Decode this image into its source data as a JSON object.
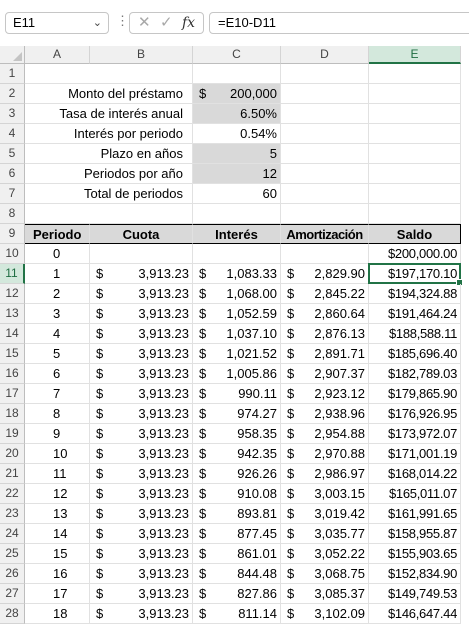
{
  "formula_bar": {
    "name_box": "E11",
    "dots": "⋮",
    "cancel_glyph": "✕",
    "enter_glyph": "✓",
    "fx_glyph": "fx",
    "formula": "=E10-D11"
  },
  "columns": [
    "A",
    "B",
    "C",
    "D",
    "E"
  ],
  "selected_cell": "E11",
  "summary": [
    {
      "row": "1",
      "label": "",
      "value": "",
      "currency": ""
    },
    {
      "row": "2",
      "label": "Monto del préstamo",
      "currency": "$",
      "value": "200,000"
    },
    {
      "row": "3",
      "label": "Tasa de interés anual",
      "currency": "",
      "value": "6.50%"
    },
    {
      "row": "4",
      "label": "Interés por periodo",
      "currency": "",
      "value": "0.54%"
    },
    {
      "row": "5",
      "label": "Plazo en años",
      "currency": "",
      "value": "5"
    },
    {
      "row": "6",
      "label": "Periodos por año",
      "currency": "",
      "value": "12"
    },
    {
      "row": "7",
      "label": "Total de periodos",
      "currency": "",
      "value": "60"
    },
    {
      "row": "8",
      "label": "",
      "currency": "",
      "value": ""
    }
  ],
  "table_header": {
    "row": "9",
    "periodo": "Periodo",
    "cuota": "Cuota",
    "interes": "Interés",
    "amortizacion": "Amortización",
    "saldo": "Saldo"
  },
  "table_rows": [
    {
      "row": "10",
      "periodo": "0",
      "cuota": "",
      "interes": "",
      "amortizacion": "",
      "saldo": "$200,000.00"
    },
    {
      "row": "11",
      "periodo": "1",
      "cuota": "3,913.23",
      "interes": "1,083.33",
      "amortizacion": "2,829.90",
      "saldo": "$197,170.10"
    },
    {
      "row": "12",
      "periodo": "2",
      "cuota": "3,913.23",
      "interes": "1,068.00",
      "amortizacion": "2,845.22",
      "saldo": "$194,324.88"
    },
    {
      "row": "13",
      "periodo": "3",
      "cuota": "3,913.23",
      "interes": "1,052.59",
      "amortizacion": "2,860.64",
      "saldo": "$191,464.24"
    },
    {
      "row": "14",
      "periodo": "4",
      "cuota": "3,913.23",
      "interes": "1,037.10",
      "amortizacion": "2,876.13",
      "saldo": "$188,588.11"
    },
    {
      "row": "15",
      "periodo": "5",
      "cuota": "3,913.23",
      "interes": "1,021.52",
      "amortizacion": "2,891.71",
      "saldo": "$185,696.40"
    },
    {
      "row": "16",
      "periodo": "6",
      "cuota": "3,913.23",
      "interes": "1,005.86",
      "amortizacion": "2,907.37",
      "saldo": "$182,789.03"
    },
    {
      "row": "17",
      "periodo": "7",
      "cuota": "3,913.23",
      "interes": "990.11",
      "amortizacion": "2,923.12",
      "saldo": "$179,865.90"
    },
    {
      "row": "18",
      "periodo": "8",
      "cuota": "3,913.23",
      "interes": "974.27",
      "amortizacion": "2,938.96",
      "saldo": "$176,926.95"
    },
    {
      "row": "19",
      "periodo": "9",
      "cuota": "3,913.23",
      "interes": "958.35",
      "amortizacion": "2,954.88",
      "saldo": "$173,972.07"
    },
    {
      "row": "20",
      "periodo": "10",
      "cuota": "3,913.23",
      "interes": "942.35",
      "amortizacion": "2,970.88",
      "saldo": "$171,001.19"
    },
    {
      "row": "21",
      "periodo": "11",
      "cuota": "3,913.23",
      "interes": "926.26",
      "amortizacion": "2,986.97",
      "saldo": "$168,014.22"
    },
    {
      "row": "22",
      "periodo": "12",
      "cuota": "3,913.23",
      "interes": "910.08",
      "amortizacion": "3,003.15",
      "saldo": "$165,011.07"
    },
    {
      "row": "23",
      "periodo": "13",
      "cuota": "3,913.23",
      "interes": "893.81",
      "amortizacion": "3,019.42",
      "saldo": "$161,991.65"
    },
    {
      "row": "24",
      "periodo": "14",
      "cuota": "3,913.23",
      "interes": "877.45",
      "amortizacion": "3,035.77",
      "saldo": "$158,955.87"
    },
    {
      "row": "25",
      "periodo": "15",
      "cuota": "3,913.23",
      "interes": "861.01",
      "amortizacion": "3,052.22",
      "saldo": "$155,903.65"
    },
    {
      "row": "26",
      "periodo": "16",
      "cuota": "3,913.23",
      "interes": "844.48",
      "amortizacion": "3,068.75",
      "saldo": "$152,834.90"
    },
    {
      "row": "27",
      "periodo": "17",
      "cuota": "3,913.23",
      "interes": "827.86",
      "amortizacion": "3,085.37",
      "saldo": "$149,749.53"
    },
    {
      "row": "28",
      "periodo": "18",
      "cuota": "3,913.23",
      "interes": "811.14",
      "amortizacion": "3,102.09",
      "saldo": "$146,647.44"
    }
  ],
  "currency_symbol": "$",
  "colors": {
    "accent": "#217346",
    "input_fill": "#d9d9d9",
    "header_fill": "#f0f0f0"
  }
}
